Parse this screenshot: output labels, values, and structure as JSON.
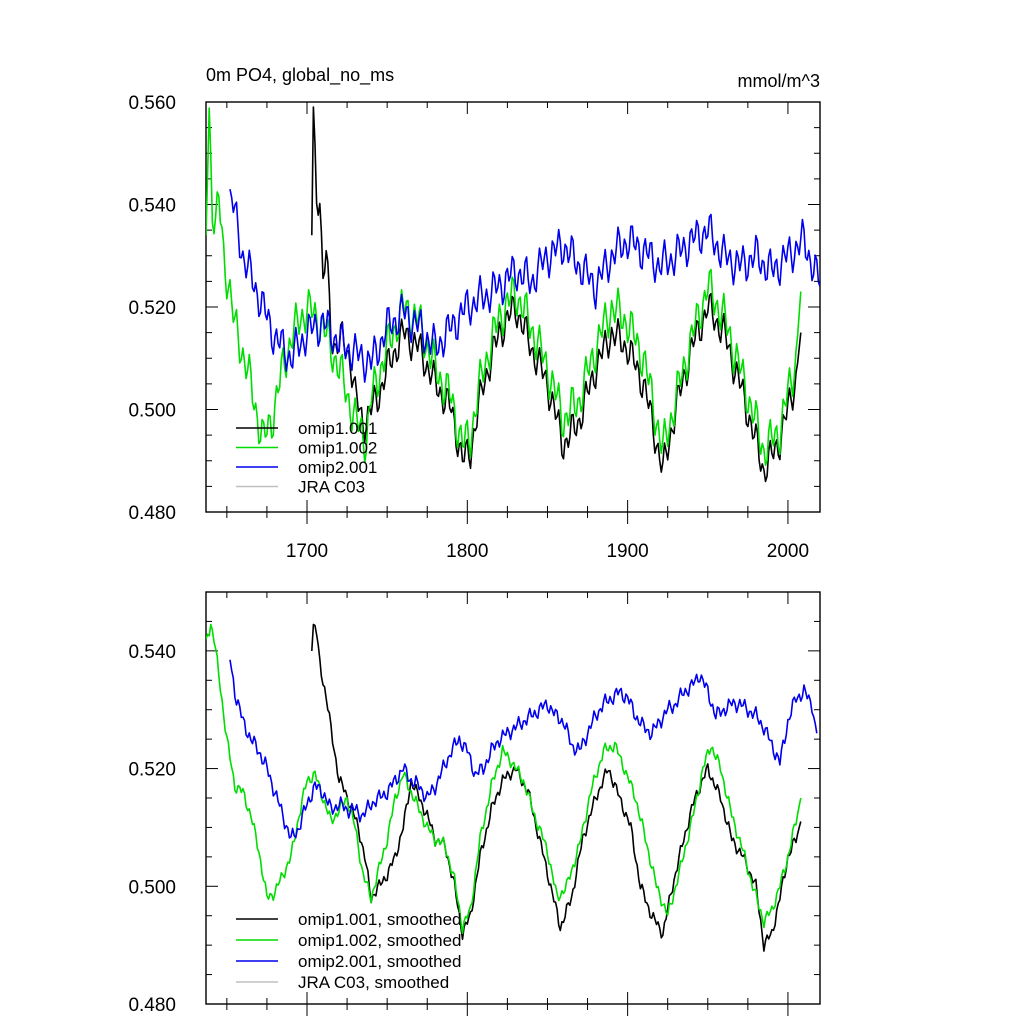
{
  "chart_data": [
    {
      "type": "line",
      "title": "0m PO4, global_no_ms",
      "units": "mmol/m^3",
      "xlim": [
        1637,
        2020
      ],
      "ylim": [
        0.48,
        0.56
      ],
      "x_ticks": [
        1700,
        1800,
        1900,
        2000
      ],
      "y_ticks": [
        0.48,
        0.5,
        0.52,
        0.54,
        0.56
      ],
      "y_tick_labels": [
        "0.480",
        "0.500",
        "0.520",
        "0.540",
        "0.560"
      ],
      "show_x_tick_labels": true,
      "legend": [
        "omip1.001",
        "omip1.002",
        "omip2.001",
        "JRA C03"
      ],
      "series": [
        {
          "name": "omip1.001",
          "color": "#000000",
          "osc": {
            "amp": 0.004,
            "freq": 0.9
          },
          "x": [
            1703,
            1704,
            1706,
            1708,
            1710,
            1712,
            1715,
            1718,
            1721,
            1724,
            1727,
            1730,
            1735,
            1740,
            1745,
            1750,
            1760,
            1770,
            1780,
            1790,
            1797,
            1802,
            1810,
            1820,
            1830,
            1840,
            1850,
            1860,
            1870,
            1880,
            1890,
            1900,
            1910,
            1922,
            1930,
            1940,
            1950,
            1960,
            1970,
            1985,
            1995,
            2005,
            2008
          ],
          "values": [
            0.534,
            0.559,
            0.54,
            0.543,
            0.524,
            0.531,
            0.515,
            0.512,
            0.514,
            0.512,
            0.51,
            0.503,
            0.497,
            0.5,
            0.503,
            0.508,
            0.515,
            0.512,
            0.505,
            0.5,
            0.49,
            0.492,
            0.505,
            0.515,
            0.52,
            0.512,
            0.505,
            0.493,
            0.498,
            0.508,
            0.515,
            0.512,
            0.505,
            0.488,
            0.5,
            0.512,
            0.52,
            0.515,
            0.505,
            0.488,
            0.494,
            0.506,
            0.515
          ]
        },
        {
          "name": "omip1.002",
          "color": "#00dd00",
          "osc": {
            "amp": 0.005,
            "freq": 0.9
          },
          "x": [
            1637,
            1639,
            1641,
            1643,
            1645,
            1648,
            1652,
            1655,
            1658,
            1662,
            1668,
            1673,
            1678,
            1685,
            1690,
            1700,
            1710,
            1720,
            1730,
            1737,
            1740,
            1750,
            1760,
            1770,
            1780,
            1790,
            1797,
            1802,
            1810,
            1820,
            1830,
            1840,
            1850,
            1860,
            1870,
            1880,
            1890,
            1900,
            1910,
            1922,
            1930,
            1940,
            1950,
            1960,
            1970,
            1985,
            1995,
            2005,
            2008
          ],
          "values": [
            0.534,
            0.558,
            0.54,
            0.536,
            0.541,
            0.53,
            0.523,
            0.516,
            0.513,
            0.509,
            0.5,
            0.494,
            0.498,
            0.508,
            0.514,
            0.52,
            0.516,
            0.508,
            0.498,
            0.494,
            0.502,
            0.512,
            0.52,
            0.517,
            0.508,
            0.502,
            0.493,
            0.495,
            0.508,
            0.518,
            0.523,
            0.516,
            0.508,
            0.498,
            0.502,
            0.512,
            0.52,
            0.517,
            0.51,
            0.492,
            0.502,
            0.514,
            0.524,
            0.518,
            0.508,
            0.492,
            0.496,
            0.51,
            0.523
          ]
        },
        {
          "name": "omip2.001",
          "color": "#0000ee",
          "osc": {
            "amp": 0.0045,
            "freq": 0.9
          },
          "x": [
            1652,
            1655,
            1660,
            1665,
            1670,
            1675,
            1680,
            1690,
            1700,
            1710,
            1720,
            1730,
            1740,
            1750,
            1760,
            1770,
            1780,
            1790,
            1800,
            1810,
            1820,
            1830,
            1840,
            1850,
            1860,
            1870,
            1880,
            1890,
            1900,
            1910,
            1920,
            1930,
            1940,
            1950,
            1960,
            1970,
            1980,
            1990,
            2000,
            2010,
            2020
          ],
          "values": [
            0.543,
            0.538,
            0.53,
            0.526,
            0.522,
            0.518,
            0.514,
            0.51,
            0.515,
            0.517,
            0.513,
            0.511,
            0.509,
            0.516,
            0.519,
            0.516,
            0.512,
            0.516,
            0.52,
            0.522,
            0.524,
            0.527,
            0.525,
            0.53,
            0.532,
            0.528,
            0.524,
            0.53,
            0.533,
            0.531,
            0.528,
            0.53,
            0.533,
            0.535,
            0.53,
            0.528,
            0.53,
            0.527,
            0.53,
            0.533,
            0.524
          ]
        },
        {
          "name": "JRA C03",
          "color": "#c0c0c0",
          "x": [],
          "values": []
        }
      ]
    },
    {
      "type": "line",
      "title": "",
      "xlim": [
        1637,
        2020
      ],
      "ylim": [
        0.48,
        0.55
      ],
      "x_ticks": [
        1700,
        1800,
        1900,
        2000
      ],
      "y_ticks": [
        0.48,
        0.5,
        0.52,
        0.54
      ],
      "y_tick_labels": [
        "0.480",
        "0.500",
        "0.520",
        "0.540"
      ],
      "show_x_tick_labels": false,
      "legend": [
        "omip1.001, smoothed",
        "omip1.002, smoothed",
        "omip2.001, smoothed",
        "JRA C03, smoothed"
      ],
      "series": [
        {
          "name": "omip1.001, smoothed",
          "color": "#000000",
          "osc": {
            "amp": 0.0012,
            "freq": 1.1
          },
          "x": [
            1703,
            1704,
            1706,
            1708,
            1712,
            1716,
            1720,
            1724,
            1728,
            1732,
            1736,
            1740,
            1745,
            1750,
            1755,
            1760,
            1765,
            1770,
            1775,
            1780,
            1786,
            1792,
            1797,
            1802,
            1808,
            1815,
            1822,
            1830,
            1838,
            1845,
            1852,
            1858,
            1865,
            1872,
            1880,
            1888,
            1895,
            1902,
            1908,
            1915,
            1922,
            1928,
            1935,
            1942,
            1950,
            1958,
            1965,
            1972,
            1980,
            1985,
            1990,
            1995,
            2000,
            2005,
            2008
          ],
          "values": [
            0.54,
            0.5445,
            0.543,
            0.538,
            0.532,
            0.525,
            0.518,
            0.516,
            0.513,
            0.51,
            0.505,
            0.498,
            0.5,
            0.502,
            0.505,
            0.51,
            0.518,
            0.515,
            0.512,
            0.508,
            0.507,
            0.5,
            0.492,
            0.495,
            0.505,
            0.513,
            0.518,
            0.52,
            0.516,
            0.508,
            0.5,
            0.493,
            0.498,
            0.508,
            0.515,
            0.52,
            0.515,
            0.51,
            0.5,
            0.495,
            0.492,
            0.5,
            0.508,
            0.515,
            0.52,
            0.515,
            0.508,
            0.505,
            0.5,
            0.49,
            0.492,
            0.498,
            0.505,
            0.508,
            0.511
          ]
        },
        {
          "name": "omip1.002, smoothed",
          "color": "#00dd00",
          "osc": {
            "amp": 0.0012,
            "freq": 1.1
          },
          "x": [
            1637,
            1640,
            1642,
            1645,
            1650,
            1655,
            1660,
            1665,
            1670,
            1675,
            1680,
            1685,
            1690,
            1695,
            1700,
            1705,
            1710,
            1715,
            1720,
            1725,
            1730,
            1735,
            1740,
            1745,
            1750,
            1755,
            1760,
            1765,
            1770,
            1775,
            1780,
            1786,
            1792,
            1797,
            1802,
            1808,
            1815,
            1822,
            1828,
            1835,
            1842,
            1850,
            1856,
            1862,
            1870,
            1877,
            1885,
            1892,
            1898,
            1905,
            1912,
            1918,
            1925,
            1932,
            1940,
            1947,
            1952,
            1958,
            1965,
            1972,
            1978,
            1985,
            1990,
            1995,
            2000,
            2005,
            2008
          ],
          "values": [
            0.542,
            0.5445,
            0.542,
            0.536,
            0.525,
            0.517,
            0.516,
            0.512,
            0.506,
            0.498,
            0.499,
            0.502,
            0.505,
            0.512,
            0.518,
            0.519,
            0.515,
            0.511,
            0.513,
            0.515,
            0.51,
            0.502,
            0.498,
            0.503,
            0.508,
            0.515,
            0.519,
            0.516,
            0.513,
            0.51,
            0.508,
            0.507,
            0.501,
            0.493,
            0.496,
            0.508,
            0.517,
            0.523,
            0.521,
            0.518,
            0.512,
            0.506,
            0.498,
            0.5,
            0.507,
            0.516,
            0.523,
            0.524,
            0.52,
            0.515,
            0.507,
            0.5,
            0.495,
            0.502,
            0.511,
            0.52,
            0.524,
            0.52,
            0.512,
            0.506,
            0.5,
            0.494,
            0.496,
            0.5,
            0.505,
            0.511,
            0.515
          ]
        },
        {
          "name": "omip2.001, smoothed",
          "color": "#0000ee",
          "osc": {
            "amp": 0.0015,
            "freq": 1.1
          },
          "x": [
            1652,
            1655,
            1660,
            1665,
            1670,
            1675,
            1680,
            1685,
            1690,
            1695,
            1700,
            1705,
            1710,
            1715,
            1720,
            1725,
            1730,
            1735,
            1740,
            1745,
            1750,
            1755,
            1760,
            1765,
            1770,
            1775,
            1780,
            1785,
            1790,
            1795,
            1800,
            1805,
            1810,
            1815,
            1820,
            1825,
            1830,
            1835,
            1840,
            1845,
            1850,
            1855,
            1860,
            1865,
            1870,
            1875,
            1880,
            1885,
            1890,
            1895,
            1900,
            1905,
            1910,
            1915,
            1920,
            1925,
            1930,
            1935,
            1940,
            1945,
            1950,
            1955,
            1960,
            1965,
            1970,
            1975,
            1980,
            1985,
            1990,
            1995,
            2000,
            2005,
            2010,
            2015,
            2018
          ],
          "values": [
            0.5385,
            0.533,
            0.528,
            0.525,
            0.523,
            0.52,
            0.516,
            0.512,
            0.508,
            0.51,
            0.514,
            0.517,
            0.516,
            0.513,
            0.514,
            0.513,
            0.513,
            0.512,
            0.514,
            0.515,
            0.516,
            0.518,
            0.52,
            0.518,
            0.517,
            0.515,
            0.517,
            0.52,
            0.523,
            0.525,
            0.523,
            0.519,
            0.52,
            0.523,
            0.525,
            0.526,
            0.527,
            0.528,
            0.529,
            0.53,
            0.531,
            0.529,
            0.528,
            0.524,
            0.523,
            0.526,
            0.529,
            0.531,
            0.532,
            0.533,
            0.532,
            0.529,
            0.527,
            0.526,
            0.528,
            0.53,
            0.531,
            0.533,
            0.534,
            0.536,
            0.533,
            0.529,
            0.53,
            0.531,
            0.531,
            0.53,
            0.529,
            0.527,
            0.524,
            0.521,
            0.528,
            0.532,
            0.533,
            0.531,
            0.526
          ]
        },
        {
          "name": "JRA C03, smoothed",
          "color": "#c0c0c0",
          "x": [],
          "values": []
        }
      ]
    }
  ]
}
